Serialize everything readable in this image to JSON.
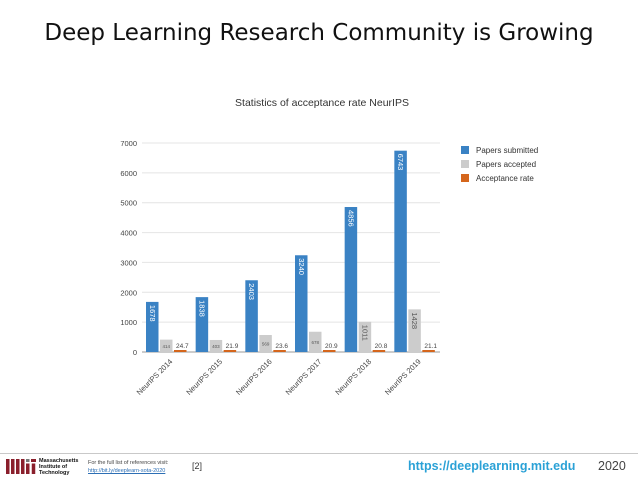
{
  "slide": {
    "title": "Deep Learning Research Community is Growing"
  },
  "chart_data": {
    "type": "bar",
    "title": "Statistics of acceptance rate NeurIPS",
    "categories": [
      "NeurIPS 2014",
      "NeurIPS 2015",
      "NeurIPS 2016",
      "NeurIPS 2017",
      "NeurIPS 2018",
      "NeurIPS 2019"
    ],
    "series": [
      {
        "name": "Papers submitted",
        "color": "#3a82c4",
        "values": [
          1678,
          1838,
          2403,
          3240,
          4856,
          6743
        ]
      },
      {
        "name": "Papers accepted",
        "color": "#cccccc",
        "values": [
          414,
          403,
          569,
          678,
          1011,
          1428
        ]
      },
      {
        "name": "Acceptance rate",
        "color": "#d5661c",
        "values": [
          24.7,
          21.9,
          23.6,
          20.9,
          20.8,
          21.1
        ]
      }
    ],
    "data_labels": [
      [
        "1678",
        "1838",
        "2403",
        "3240",
        "4856",
        "6743"
      ],
      [
        "414",
        "403",
        "569",
        "678",
        "1011",
        "1428"
      ],
      [
        "24.7",
        "21.9",
        "23.6",
        "20.9",
        "20.8",
        "21.1"
      ]
    ],
    "yticks": [
      "0",
      "1000",
      "2000",
      "3000",
      "4000",
      "5000",
      "6000",
      "7000"
    ],
    "ylim": [
      0,
      7000
    ],
    "grid": true,
    "legend": "right"
  },
  "footer": {
    "institution_lines": [
      "Massachusetts",
      "Institute of",
      "Technology"
    ],
    "ref_note": "For the full list of references visit:",
    "ref_link": "http://bit.ly/deeplearn-sota-2020",
    "ref_number": "[2]",
    "site_url": "https://deeplearning.mit.edu",
    "year": "2020"
  }
}
